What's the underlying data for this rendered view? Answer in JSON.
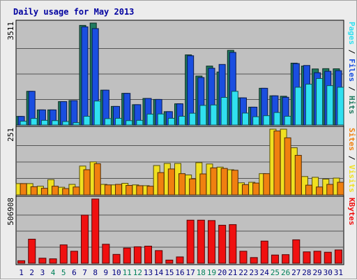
{
  "chart_data": {
    "type": "bar",
    "title": "Daily usage for May 2013",
    "categories": [
      "1",
      "2",
      "3",
      "4",
      "5",
      "6",
      "7",
      "8",
      "9",
      "10",
      "11",
      "12",
      "13",
      "14",
      "15",
      "16",
      "17",
      "18",
      "19",
      "20",
      "21",
      "22",
      "23",
      "24",
      "25",
      "26",
      "27",
      "28",
      "29",
      "30",
      "31"
    ],
    "weekend_days": [
      "4",
      "5",
      "11",
      "12",
      "18",
      "19",
      "25",
      "26"
    ],
    "panels": [
      {
        "id": "hits",
        "max_label": "3511",
        "max": 3511,
        "right_label": [
          "Pages",
          " / ",
          "Files",
          " / ",
          "Hits"
        ],
        "series": [
          {
            "name": "Hits",
            "color": "#1f7a5f",
            "values": [
              295,
              1160,
              520,
              520,
              805,
              840,
              3430,
              3511,
              1200,
              640,
              1090,
              700,
              915,
              880,
              460,
              730,
              2415,
              1685,
              2030,
              1825,
              2570,
              935,
              615,
              1265,
              1005,
              990,
              2130,
              2030,
              1930,
              1940,
              1935
            ]
          },
          {
            "name": "Files",
            "color": "#1a4ee0",
            "values": [
              295,
              1160,
              520,
              520,
              805,
              840,
              3380,
              3320,
              1200,
              640,
              1090,
              700,
              915,
              880,
              460,
              730,
              2385,
              1635,
              1955,
              2085,
              2500,
              935,
              615,
              1265,
              1005,
              955,
              2115,
              2050,
              1800,
              1850,
              1870
            ]
          },
          {
            "name": "Pages",
            "color": "#30e0f0",
            "values": [
              130,
              225,
              160,
              150,
              120,
              80,
              300,
              825,
              220,
              230,
              150,
              160,
              375,
              380,
              230,
              300,
              405,
              675,
              690,
              950,
              1160,
              410,
              285,
              320,
              430,
              300,
              1300,
              1405,
              1600,
              1355,
              1300
            ]
          }
        ]
      },
      {
        "id": "visits",
        "max_label": "251",
        "max": 251,
        "right_label": [
          "Sites",
          " / ",
          "Visits"
        ],
        "series": [
          {
            "name": "Visits",
            "color": "#f0e020",
            "values": [
              43,
              43,
              33,
              58,
              29,
              40,
              110,
              126,
              40,
              38,
              44,
              38,
              35,
              112,
              120,
              120,
              76,
              123,
              118,
              106,
              96,
              46,
              48,
              81,
              251,
              251,
              180,
              70,
              67,
              60,
              64
            ]
          },
          {
            "name": "Sites",
            "color": "#f08010",
            "values": [
              43,
              31,
              25,
              33,
              24,
              30,
              96,
              119,
              38,
              40,
              36,
              35,
              33,
              85,
              99,
              81,
              61,
              80,
              103,
              101,
              94,
              39,
              45,
              81,
              244,
              218,
              151,
              37,
              30,
              40,
              48
            ]
          }
        ]
      },
      {
        "id": "kbytes",
        "max_label": "506908",
        "max": 506908,
        "right_label": [
          "KBytes"
        ],
        "series": [
          {
            "name": "KBytes",
            "color": "#f01010",
            "values": [
              20000,
              190000,
              40000,
              35000,
              145000,
              95000,
              380000,
              506908,
              150000,
              70000,
              120000,
              130000,
              135000,
              100000,
              25000,
              50000,
              340000,
              340000,
              337000,
              300000,
              305000,
              95000,
              45000,
              175000,
              65000,
              68000,
              185000,
              90000,
              95000,
              87000,
              105000
            ]
          }
        ]
      }
    ]
  }
}
